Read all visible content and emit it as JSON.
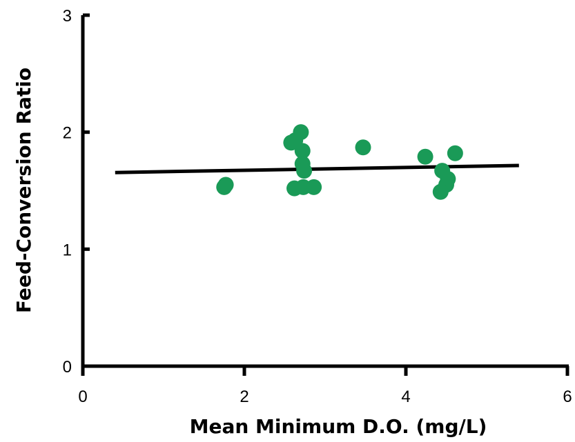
{
  "chart_data": {
    "type": "scatter",
    "title": "",
    "xlabel": "Mean Minimum D.O. (mg/L)",
    "ylabel": "Feed-Conversion Ratio",
    "xlim": [
      0,
      6
    ],
    "ylim": [
      0,
      3
    ],
    "x_ticks": [
      "0",
      "2",
      "4",
      "6"
    ],
    "y_ticks": [
      "0",
      "1",
      "2",
      "3"
    ],
    "grid": false,
    "legend": "none",
    "points": [
      {
        "x": 1.75,
        "y": 1.53
      },
      {
        "x": 1.77,
        "y": 1.55
      },
      {
        "x": 2.58,
        "y": 1.91
      },
      {
        "x": 2.63,
        "y": 1.93
      },
      {
        "x": 2.7,
        "y": 2.0
      },
      {
        "x": 2.72,
        "y": 1.84
      },
      {
        "x": 2.72,
        "y": 1.73
      },
      {
        "x": 2.74,
        "y": 1.67
      },
      {
        "x": 2.62,
        "y": 1.52
      },
      {
        "x": 2.73,
        "y": 1.53
      },
      {
        "x": 2.86,
        "y": 1.53
      },
      {
        "x": 3.47,
        "y": 1.87
      },
      {
        "x": 4.24,
        "y": 1.79
      },
      {
        "x": 4.61,
        "y": 1.82
      },
      {
        "x": 4.45,
        "y": 1.67
      },
      {
        "x": 4.52,
        "y": 1.6
      },
      {
        "x": 4.5,
        "y": 1.55
      },
      {
        "x": 4.43,
        "y": 1.49
      }
    ],
    "trendline": {
      "x": [
        0.4,
        5.4
      ],
      "y": [
        1.655,
        1.715
      ]
    },
    "colors": {
      "points": "#1a9a57",
      "line": "#000000",
      "axis": "#000000"
    }
  }
}
